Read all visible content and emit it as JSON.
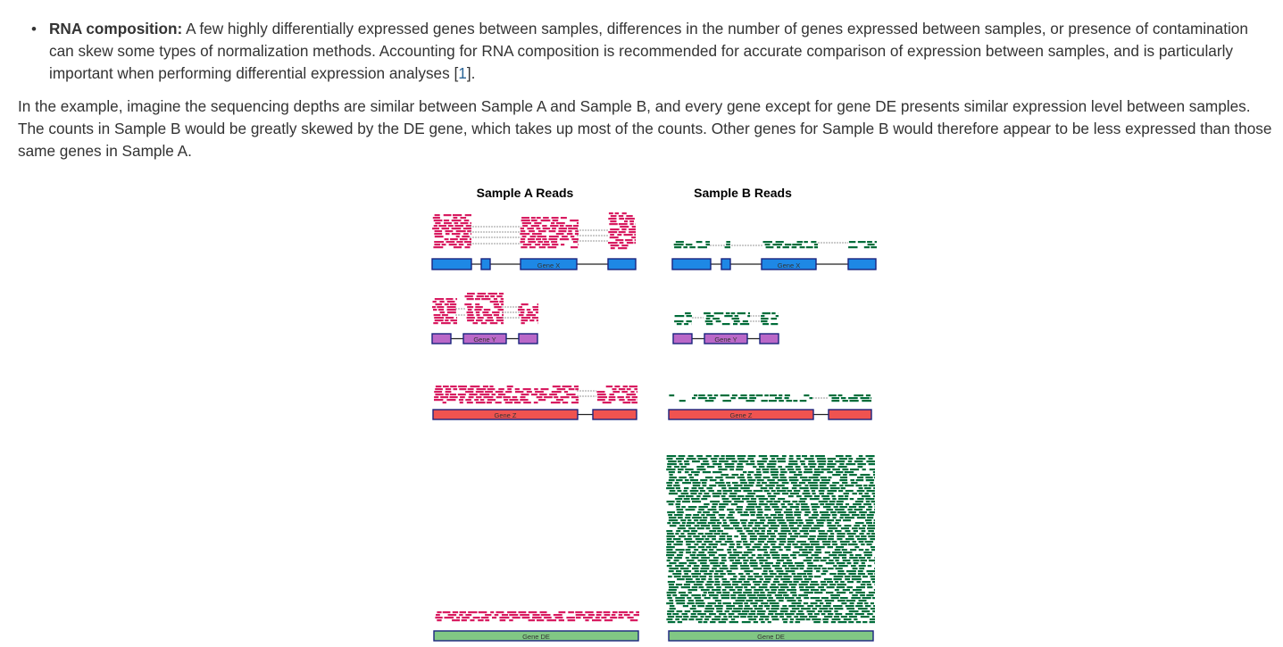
{
  "bullet": {
    "marker": "•",
    "term": "RNA composition:",
    "text_before_ref": " A few highly differentially expressed genes between samples, differences in the number of genes expressed between samples, or presence of contamination can skew some types of normalization methods. Accounting for RNA composition is recommended for accurate comparison of expression between samples, and is particularly important when performing differential expression analyses [",
    "ref": "1",
    "text_after_ref": "]."
  },
  "paragraph": "In the example, imagine the sequencing depths are similar between Sample A and Sample B, and every gene except for gene DE presents similar expression level between samples. The counts in Sample B would be greatly skewed by the DE gene, which takes up most of the counts. Other genes for Sample B would therefore appear to be less expressed than those same genes in Sample A.",
  "figure": {
    "sample_a_title": "Sample A Reads",
    "sample_b_title": "Sample B Reads",
    "gene_labels": {
      "x": "Gene X",
      "y": "Gene Y",
      "z": "Gene Z",
      "de": "Gene DE"
    },
    "colors": {
      "sample_a_reads": "#d81b60",
      "sample_b_reads": "#006d3a",
      "junction_dash": "#999999",
      "gene_x": "#1e88e5",
      "gene_y": "#ba68c8",
      "gene_z": "#ef5350",
      "gene_de": "#81c784",
      "exon_stroke": "#1a237e"
    }
  }
}
